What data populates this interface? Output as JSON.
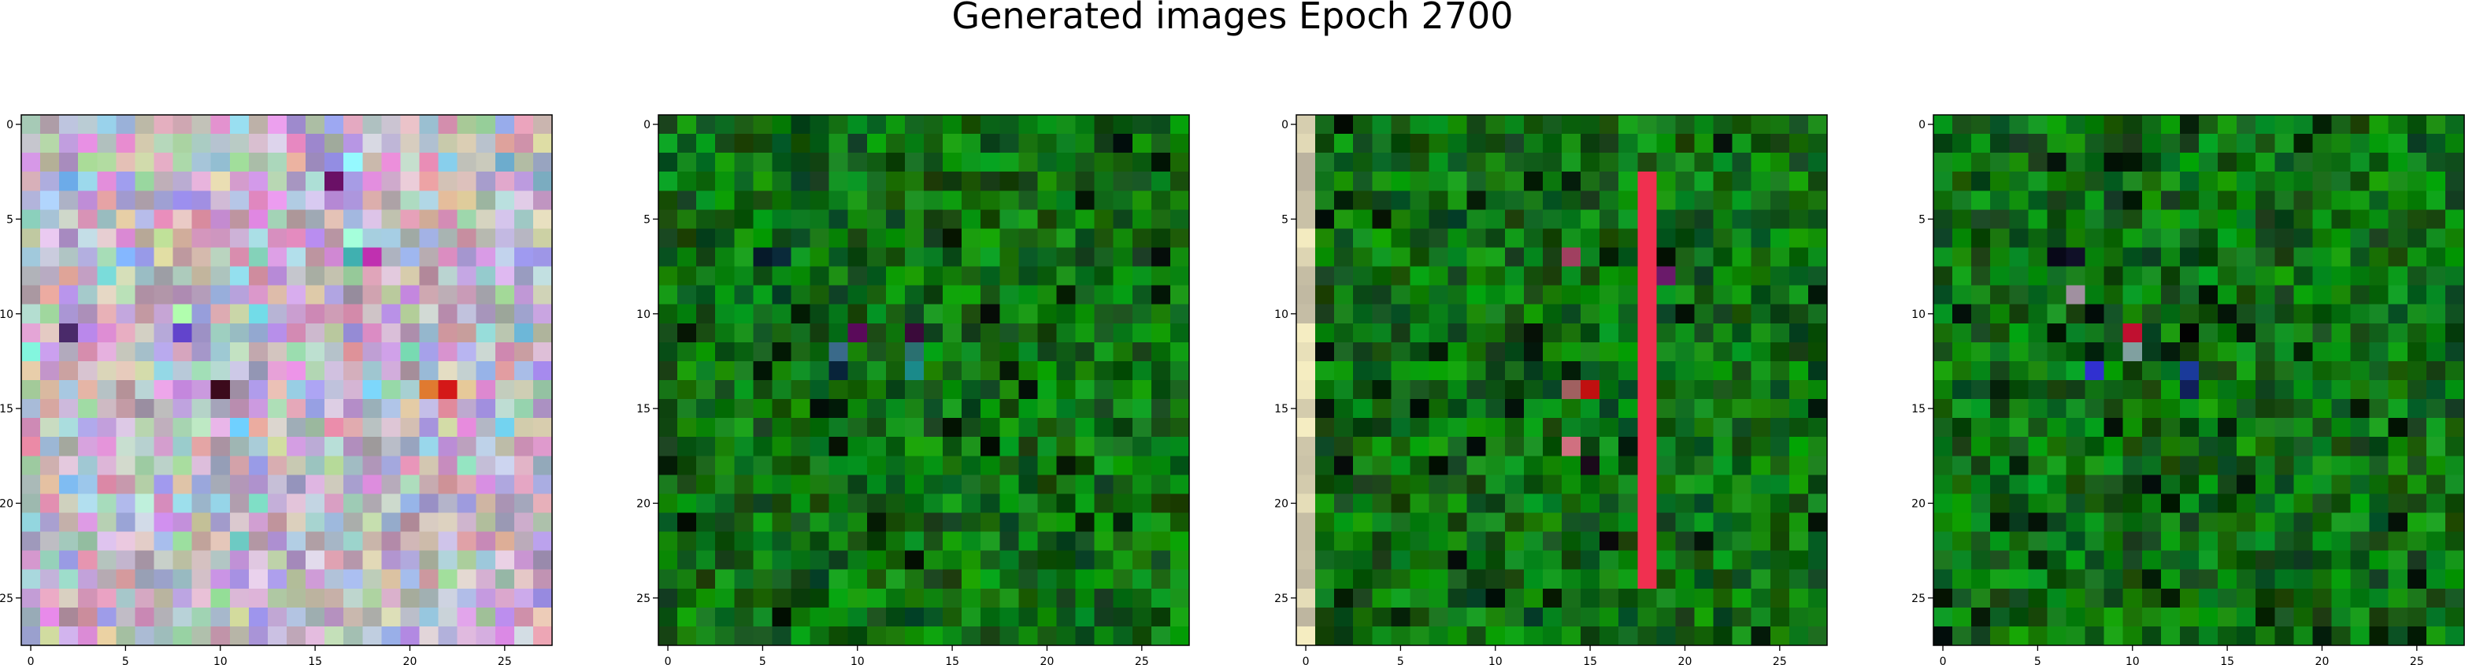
{
  "figure": {
    "title": "Generated images Epoch 2700"
  },
  "chart_data": [
    {
      "type": "heatmap",
      "grid": [
        28,
        28
      ],
      "xlim": [
        -0.5,
        27.5
      ],
      "ylim": [
        27.5,
        -0.5
      ],
      "xticks": [
        "0",
        "5",
        "10",
        "15",
        "20",
        "25"
      ],
      "yticks": [
        "0",
        "5",
        "10",
        "15",
        "20",
        "25"
      ],
      "palette": "pastel-noise",
      "base_color": "#c0b4c4",
      "highlights": [
        {
          "row": 3,
          "col": 16,
          "color": "#6a1066"
        },
        {
          "row": 11,
          "col": 8,
          "color": "#6244cc"
        },
        {
          "row": 14,
          "col": 10,
          "color": "#3c0a1c"
        },
        {
          "row": 14,
          "col": 22,
          "color": "#d41818"
        },
        {
          "row": 14,
          "col": 21,
          "color": "#e07a30"
        },
        {
          "row": 11,
          "col": 2,
          "color": "#4a2a6a"
        },
        {
          "row": 7,
          "col": 17,
          "color": "#40b0b0"
        },
        {
          "row": 7,
          "col": 18,
          "color": "#c030b0"
        }
      ]
    },
    {
      "type": "heatmap",
      "grid": [
        28,
        28
      ],
      "xlim": [
        -0.5,
        27.5
      ],
      "ylim": [
        27.5,
        -0.5
      ],
      "xticks": [
        "0",
        "5",
        "10",
        "15",
        "20",
        "25"
      ],
      "yticks": [
        "0",
        "5",
        "10",
        "15",
        "20",
        "25"
      ],
      "palette": "green-noise",
      "base_color": "#0a7010",
      "highlights": [
        {
          "row": 7,
          "col": 5,
          "color": "#061a2a"
        },
        {
          "row": 7,
          "col": 6,
          "color": "#0a2a3a"
        },
        {
          "row": 11,
          "col": 10,
          "color": "#5a0a5a"
        },
        {
          "row": 11,
          "col": 13,
          "color": "#3a0a3a"
        },
        {
          "row": 12,
          "col": 9,
          "color": "#3a6a8a"
        },
        {
          "row": 13,
          "col": 9,
          "color": "#08243a"
        },
        {
          "row": 13,
          "col": 13,
          "color": "#1a8a8a"
        },
        {
          "row": 12,
          "col": 13,
          "color": "#2a7070"
        }
      ]
    },
    {
      "type": "heatmap",
      "grid": [
        28,
        28
      ],
      "xlim": [
        -0.5,
        27.5
      ],
      "ylim": [
        27.5,
        -0.5
      ],
      "xticks": [
        "0",
        "5",
        "10",
        "15",
        "20",
        "25"
      ],
      "yticks": [
        "0",
        "5",
        "10",
        "15",
        "20",
        "25"
      ],
      "palette": "green-noise",
      "base_color": "#0a7010",
      "stripe_col": 18,
      "stripe_color": "#f03050",
      "left_col_color": "#d8d0b0",
      "highlights": [
        {
          "row": 0,
          "col": 2,
          "color": "#020a02"
        },
        {
          "row": 14,
          "col": 15,
          "color": "#c01010"
        },
        {
          "row": 14,
          "col": 14,
          "color": "#a06060"
        },
        {
          "row": 17,
          "col": 14,
          "color": "#d07080"
        },
        {
          "row": 18,
          "col": 15,
          "color": "#1a0a1a"
        },
        {
          "row": 22,
          "col": 16,
          "color": "#0a0a0a"
        },
        {
          "row": 7,
          "col": 14,
          "color": "#a04060"
        },
        {
          "row": 8,
          "col": 19,
          "color": "#6a1a6a"
        }
      ]
    },
    {
      "type": "heatmap",
      "grid": [
        28,
        28
      ],
      "xlim": [
        -0.5,
        27.5
      ],
      "ylim": [
        27.5,
        -0.5
      ],
      "xticks": [
        "0",
        "5",
        "10",
        "15",
        "20",
        "25"
      ],
      "yticks": [
        "0",
        "5",
        "10",
        "15",
        "20",
        "25"
      ],
      "palette": "green-noise",
      "base_color": "#0a7010",
      "highlights": [
        {
          "row": 7,
          "col": 6,
          "color": "#080818"
        },
        {
          "row": 7,
          "col": 7,
          "color": "#101028"
        },
        {
          "row": 11,
          "col": 10,
          "color": "#c01030"
        },
        {
          "row": 12,
          "col": 10,
          "color": "#80a0a0"
        },
        {
          "row": 13,
          "col": 8,
          "color": "#3030d0"
        },
        {
          "row": 13,
          "col": 13,
          "color": "#1a3a9a"
        },
        {
          "row": 14,
          "col": 13,
          "color": "#10205a"
        },
        {
          "row": 11,
          "col": 13,
          "color": "#020202"
        },
        {
          "row": 9,
          "col": 7,
          "color": "#a090a0"
        }
      ]
    }
  ]
}
